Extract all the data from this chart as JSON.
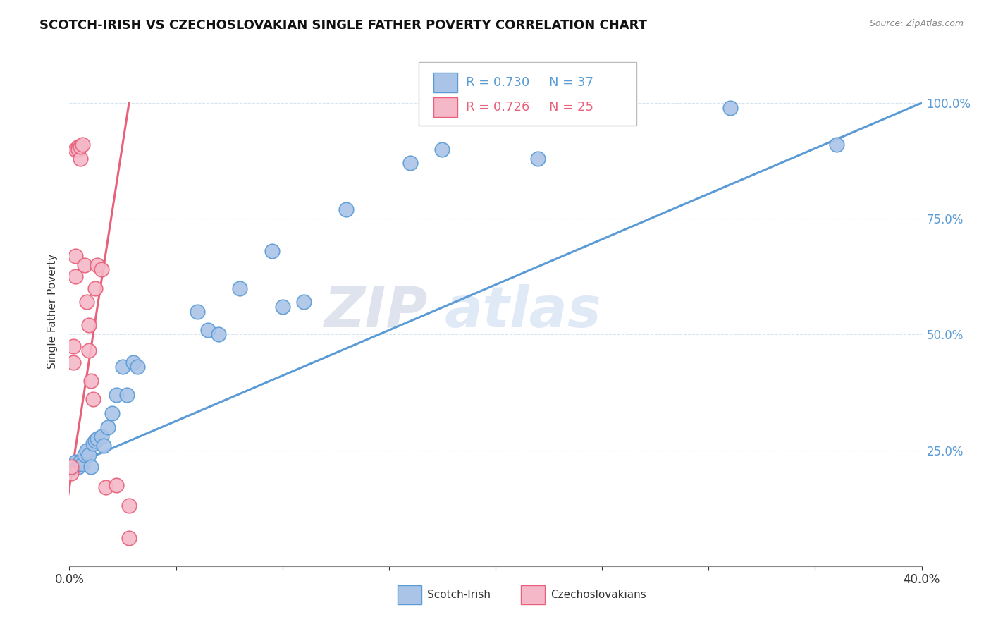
{
  "title": "SCOTCH-IRISH VS CZECHOSLOVAKIAN SINGLE FATHER POVERTY CORRELATION CHART",
  "source": "Source: ZipAtlas.com",
  "ylabel": "Single Father Poverty",
  "legend_blue_r": "R = 0.730",
  "legend_blue_n": "N = 37",
  "legend_pink_r": "R = 0.726",
  "legend_pink_n": "N = 25",
  "watermark_zip": "ZIP",
  "watermark_atlas": "atlas",
  "blue_color": "#aac4e8",
  "pink_color": "#f5b8c8",
  "line_blue": "#5b9bd5",
  "line_pink": "#e8607a",
  "blue_scatter_x": [
    0.001,
    0.002,
    0.003,
    0.003,
    0.004,
    0.005,
    0.005,
    0.006,
    0.007,
    0.008,
    0.009,
    0.01,
    0.011,
    0.012,
    0.013,
    0.015,
    0.016,
    0.018,
    0.02,
    0.022,
    0.025,
    0.027,
    0.03,
    0.032,
    0.06,
    0.065,
    0.07,
    0.08,
    0.095,
    0.1,
    0.11,
    0.13,
    0.16,
    0.175,
    0.22,
    0.31,
    0.36
  ],
  "blue_scatter_y": [
    0.21,
    0.215,
    0.22,
    0.225,
    0.215,
    0.22,
    0.225,
    0.22,
    0.24,
    0.25,
    0.24,
    0.215,
    0.265,
    0.27,
    0.275,
    0.28,
    0.26,
    0.3,
    0.33,
    0.37,
    0.43,
    0.37,
    0.44,
    0.43,
    0.55,
    0.51,
    0.5,
    0.6,
    0.68,
    0.56,
    0.57,
    0.77,
    0.87,
    0.9,
    0.88,
    0.99,
    0.91
  ],
  "pink_scatter_x": [
    0.001,
    0.001,
    0.002,
    0.002,
    0.003,
    0.003,
    0.003,
    0.004,
    0.004,
    0.005,
    0.005,
    0.006,
    0.007,
    0.008,
    0.009,
    0.009,
    0.01,
    0.011,
    0.012,
    0.013,
    0.015,
    0.017,
    0.022,
    0.028,
    0.028
  ],
  "pink_scatter_y": [
    0.2,
    0.215,
    0.475,
    0.44,
    0.625,
    0.67,
    0.9,
    0.905,
    0.9,
    0.88,
    0.905,
    0.91,
    0.65,
    0.57,
    0.52,
    0.465,
    0.4,
    0.36,
    0.6,
    0.65,
    0.64,
    0.17,
    0.175,
    0.13,
    0.06
  ],
  "blue_line_x": [
    0.0,
    0.4
  ],
  "blue_line_y": [
    0.215,
    1.0
  ],
  "pink_line_x": [
    -0.001,
    0.028
  ],
  "pink_line_y": [
    0.14,
    1.0
  ],
  "xmin": 0.0,
  "xmax": 0.4,
  "ymin": 0.0,
  "ymax": 1.1,
  "x_tick_positions": [
    0.0,
    0.05,
    0.1,
    0.15,
    0.2,
    0.25,
    0.3,
    0.35,
    0.4
  ],
  "y_tick_positions": [
    0.0,
    0.25,
    0.5,
    0.75,
    1.0
  ],
  "y_tick_labels": [
    "",
    "25.0%",
    "50.0%",
    "75.0%",
    "100.0%"
  ]
}
